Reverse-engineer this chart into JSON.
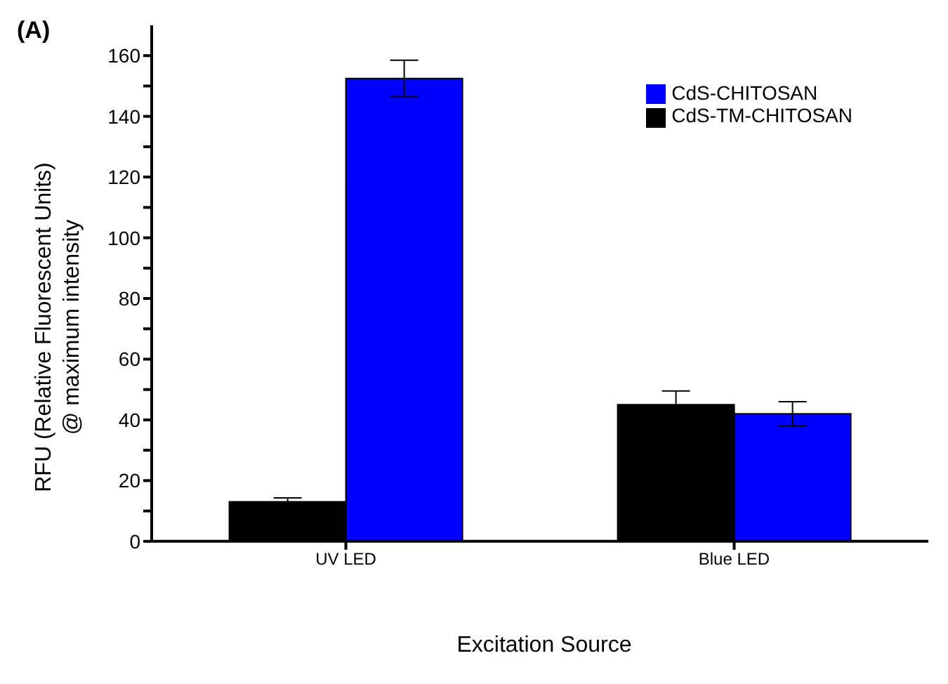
{
  "chart_data": {
    "type": "bar",
    "title": "(A)",
    "xlabel": "Excitation Source",
    "ylabel": "RFU (Relative Fluorescent Units)\n@ maximum intensity",
    "categories": [
      "UV LED",
      "Blue LED"
    ],
    "series": [
      {
        "name": "CdS-TM-CHITOSAN",
        "color": "#000000",
        "values": [
          13,
          45
        ],
        "errors": [
          1.3,
          4.5
        ]
      },
      {
        "name": "CdS-CHITOSAN",
        "color": "#0000ff",
        "values": [
          152.5,
          42
        ],
        "errors": [
          6,
          4
        ]
      }
    ],
    "ylim": [
      0,
      170
    ],
    "yticks": [
      0,
      {
        "value": 10,
        "label": null
      },
      20,
      {
        "value": 30,
        "label": null
      },
      40,
      {
        "value": 50,
        "label": null
      },
      60,
      {
        "value": 70,
        "label": null
      },
      80,
      {
        "value": 90,
        "label": null
      },
      100,
      {
        "value": 110,
        "label": null
      },
      120,
      {
        "value": 130,
        "label": null
      },
      140,
      {
        "value": 150,
        "label": null
      },
      160
    ],
    "legend": "top right",
    "grid": false
  }
}
